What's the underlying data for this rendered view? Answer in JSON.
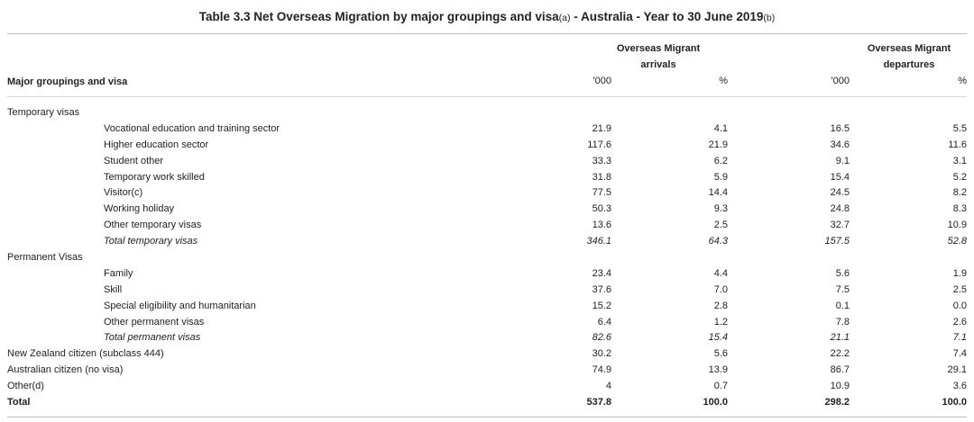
{
  "title": {
    "main": "Table 3.3 Net Overseas Migration by major groupings and visa",
    "note_a": "(a)",
    "mid": " - Australia - Year to 30 June 2019",
    "note_b": "(b)"
  },
  "header": {
    "col_label": "Major groupings and visa",
    "arrivals_line1": "Overseas Migrant",
    "arrivals_line2": "arrivals",
    "departures_line1": "Overseas Migrant",
    "departures_line2": "departures",
    "unit_thousands": "'000",
    "unit_percent": "%"
  },
  "rows": [
    {
      "label": "Temporary visas",
      "kind": "group",
      "v": [
        "",
        "",
        "",
        ""
      ]
    },
    {
      "label": "Vocational education and training sector",
      "kind": "sub",
      "v": [
        "21.9",
        "4.1",
        "16.5",
        "5.5"
      ]
    },
    {
      "label": "Higher education sector",
      "kind": "sub",
      "v": [
        "117.6",
        "21.9",
        "34.6",
        "11.6"
      ]
    },
    {
      "label": "Student other",
      "kind": "sub",
      "v": [
        "33.3",
        "6.2",
        "9.1",
        "3.1"
      ]
    },
    {
      "label": "Temporary work skilled",
      "kind": "sub",
      "v": [
        "31.8",
        "5.9",
        "15.4",
        "5.2"
      ]
    },
    {
      "label": "Visitor(c)",
      "kind": "sub",
      "v": [
        "77.5",
        "14.4",
        "24.5",
        "8.2"
      ]
    },
    {
      "label": "Working holiday",
      "kind": "sub",
      "v": [
        "50.3",
        "9.3",
        "24.8",
        "8.3"
      ]
    },
    {
      "label": "Other temporary visas",
      "kind": "sub",
      "v": [
        "13.6",
        "2.5",
        "32.7",
        "10.9"
      ]
    },
    {
      "label": "Total temporary visas",
      "kind": "subtotal",
      "v": [
        "346.1",
        "64.3",
        "157.5",
        "52.8"
      ]
    },
    {
      "label": "Permanent Visas",
      "kind": "group",
      "v": [
        "",
        "",
        "",
        ""
      ]
    },
    {
      "label": "Family",
      "kind": "sub",
      "v": [
        "23.4",
        "4.4",
        "5.6",
        "1.9"
      ]
    },
    {
      "label": "Skill",
      "kind": "sub",
      "v": [
        "37.6",
        "7.0",
        "7.5",
        "2.5"
      ]
    },
    {
      "label": "Special eligibility and humanitarian",
      "kind": "sub",
      "v": [
        "15.2",
        "2.8",
        "0.1",
        "0.0"
      ]
    },
    {
      "label": "Other permanent visas",
      "kind": "sub",
      "v": [
        "6.4",
        "1.2",
        "7.8",
        "2.6"
      ]
    },
    {
      "label": "Total permanent visas",
      "kind": "subtotal",
      "v": [
        "82.6",
        "15.4",
        "21.1",
        "7.1"
      ]
    },
    {
      "label": "New Zealand citizen (subclass 444)",
      "kind": "top",
      "v": [
        "30.2",
        "5.6",
        "22.2",
        "7.4"
      ]
    },
    {
      "label": "Australian citizen (no visa)",
      "kind": "top",
      "v": [
        "74.9",
        "13.9",
        "86.7",
        "29.1"
      ]
    },
    {
      "label": "Other(d)",
      "kind": "top",
      "v": [
        "4",
        "0.7",
        "10.9",
        "3.6"
      ]
    },
    {
      "label": "Total",
      "kind": "total",
      "v": [
        "537.8",
        "100.0",
        "298.2",
        "100.0"
      ]
    }
  ]
}
